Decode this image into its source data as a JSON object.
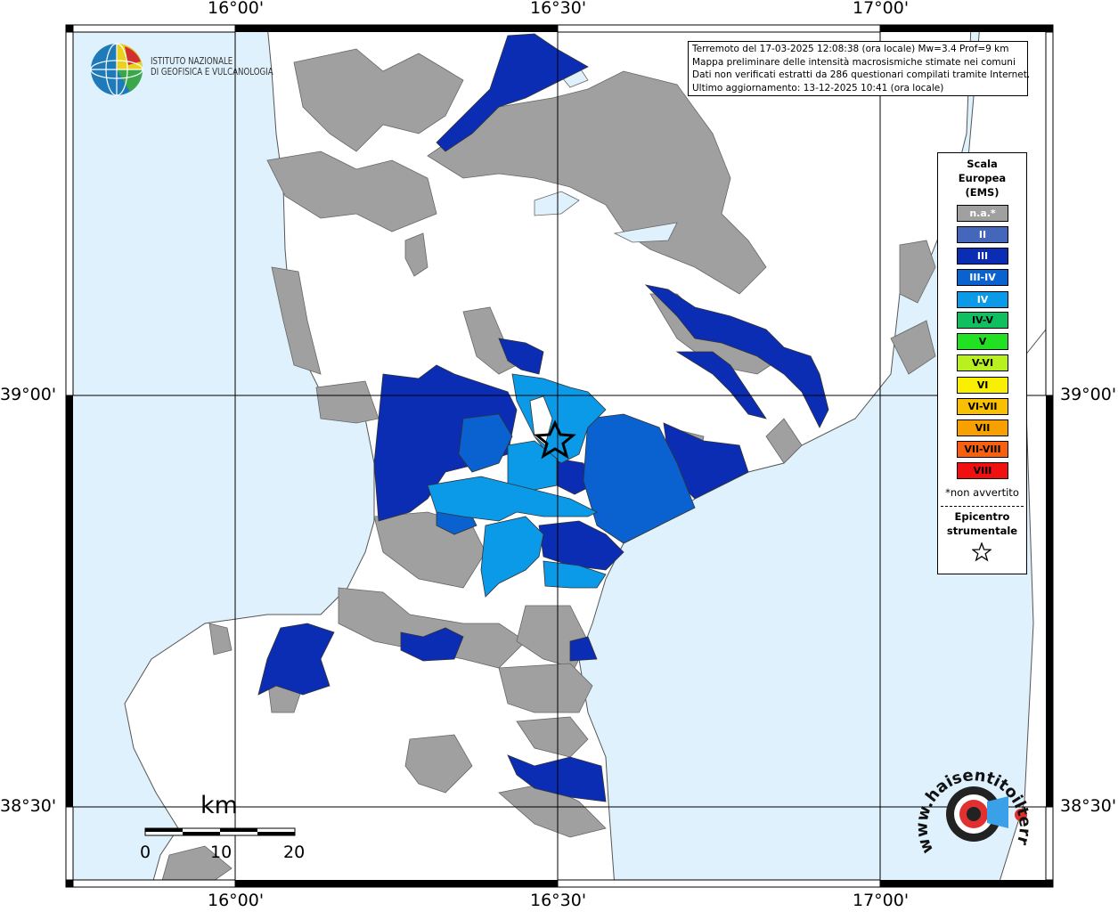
{
  "map": {
    "grid_labels": {
      "lon_top": [
        "16°00'",
        "16°30'",
        "17°00'"
      ],
      "lon_bottom": [
        "16°00'",
        "16°30'",
        "17°00'"
      ],
      "lat_left": [
        "39°00'",
        "38°30'"
      ],
      "lat_right": [
        "39°00'",
        "38°30'"
      ]
    },
    "colors": {
      "sea": "#dff1fc",
      "land": "#ffffff",
      "not_felt": "#a0a0a0",
      "intensity_III": "#0b2db4",
      "intensity_III_IV": "#0a62d0",
      "intensity_IV": "#0a9ae8"
    }
  },
  "logo": {
    "line1": "ISTITUTO NAZIONALE",
    "line2": "DI GEOFISICA E VULCANOLOGIA",
    "icon": "globe-icon"
  },
  "info": {
    "line1": "Terremoto del 17-03-2025 12:08:38 (ora locale) Mw=3.4 Prof=9 km",
    "line2": "Mappa preliminare delle intensità macrosismiche stimate nei comuni",
    "line3": "Dati non verificati estratti da 286 questionari compilati tramite Internet.",
    "line4": "Ultimo aggiornamento: 13-12-2025 10:41 (ora locale)"
  },
  "legend": {
    "title_line1": "Scala",
    "title_line2": "Europea",
    "title_line3": "(EMS)",
    "items": [
      {
        "label": "n.a.*",
        "color": "#a0a0a0"
      },
      {
        "label": "II",
        "color": "#4466bb"
      },
      {
        "label": "III",
        "color": "#0b2db4"
      },
      {
        "label": "III-IV",
        "color": "#0a62d0"
      },
      {
        "label": "IV",
        "color": "#0a9ae8"
      },
      {
        "label": "IV-V",
        "color": "#10c060"
      },
      {
        "label": "V",
        "color": "#22e022"
      },
      {
        "label": "V-VI",
        "color": "#b8f020"
      },
      {
        "label": "VI",
        "color": "#f8f000"
      },
      {
        "label": "VI-VII",
        "color": "#f8c000"
      },
      {
        "label": "VII",
        "color": "#f8a000"
      },
      {
        "label": "VII-VIII",
        "color": "#f86010"
      },
      {
        "label": "VIII",
        "color": "#f01010"
      }
    ],
    "note": "*non avvertito",
    "epicenter_line1": "Epicentro",
    "epicenter_line2": "strumentale",
    "epicenter_icon": "star-icon"
  },
  "scale_bar": {
    "unit": "km",
    "labels": [
      "0",
      "10",
      "20"
    ]
  },
  "watermark": {
    "text": "www.haisentitoilterremoto.it",
    "icon": "target-icon"
  }
}
